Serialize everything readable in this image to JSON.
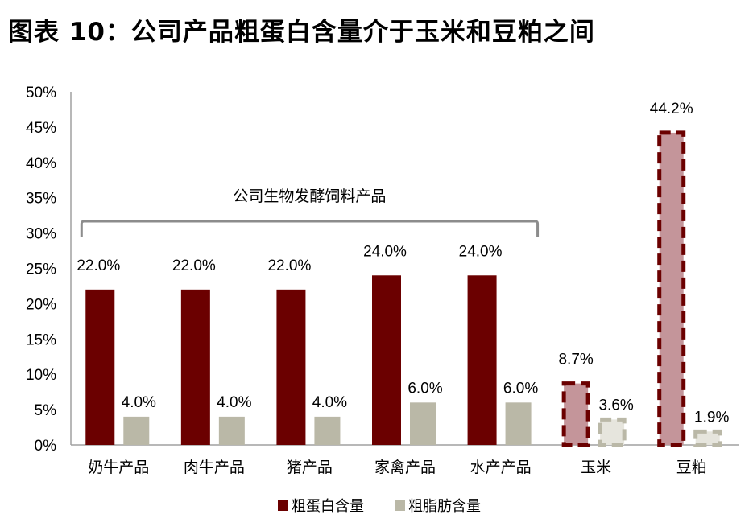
{
  "title": "图表 10：公司产品粗蛋白含量介于玉米和豆粕之间",
  "chart_data": {
    "type": "bar",
    "categories": [
      "奶牛产品",
      "肉牛产品",
      "猪产品",
      "家禽产品",
      "水产产品",
      "玉米",
      "豆粕"
    ],
    "series": [
      {
        "name": "粗蛋白含量",
        "values": [
          22.0,
          22.0,
          22.0,
          24.0,
          24.0,
          8.7,
          44.2
        ],
        "labels": [
          "22.0%",
          "22.0%",
          "22.0%",
          "24.0%",
          "24.0%",
          "8.7%",
          "44.2%"
        ]
      },
      {
        "name": "粗脂肪含量",
        "values": [
          4.0,
          4.0,
          4.0,
          6.0,
          6.0,
          3.6,
          1.9
        ],
        "labels": [
          "4.0%",
          "4.0%",
          "4.0%",
          "6.0%",
          "6.0%",
          "3.6%",
          "1.9%"
        ]
      }
    ],
    "yticks": [
      "0%",
      "5%",
      "10%",
      "15%",
      "20%",
      "25%",
      "30%",
      "35%",
      "40%",
      "45%",
      "50%"
    ],
    "ylim": [
      0,
      50
    ],
    "annotation": "公司生物发酵饲料产品",
    "bracket_categories": [
      "奶牛产品",
      "水产产品"
    ],
    "dashed_categories": [
      "玉米",
      "豆粕"
    ],
    "legend_position": "bottom",
    "colors": {
      "protein": "#6b0000",
      "fat": "#bab8a7",
      "protein_light": "#c4959a",
      "fat_light": "#e6e5dd",
      "axis": "#a0a0a0"
    }
  }
}
